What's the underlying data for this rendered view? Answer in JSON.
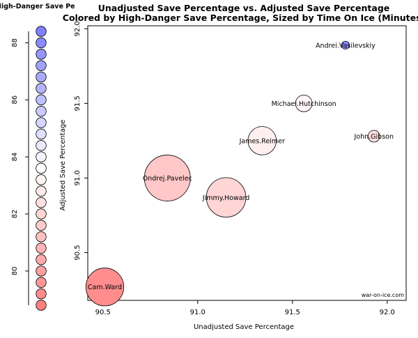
{
  "chart_data": {
    "type": "scatter",
    "title": "Unadjusted Save Percentage vs. Adjusted Save Percentage",
    "subtitle": "Colored by High-Danger Save Percentage, Sized by Time On Ice (Minutes)",
    "xlabel": "Unadjusted Save Percentage",
    "ylabel": "Adjusted Save Percentage",
    "xlim": [
      90.42,
      92.1
    ],
    "ylim": [
      90.18,
      92.02
    ],
    "xticks": [
      "90.5",
      "91.0",
      "91.5",
      "92.0"
    ],
    "yticks": [
      "90.5",
      "91.0",
      "91.5",
      "92.0"
    ],
    "grid": false,
    "points": [
      {
        "name": "Andrei.Vasilevskiy",
        "x": 91.78,
        "y": 91.89,
        "toi": 250,
        "hdsv": 88.0
      },
      {
        "name": "Michael.Hutchinson",
        "x": 91.56,
        "y": 91.5,
        "toi": 1100,
        "hdsv": 83.3
      },
      {
        "name": "John.Gibson",
        "x": 91.93,
        "y": 91.28,
        "toi": 550,
        "hdsv": 82.4
      },
      {
        "name": "James.Reimer",
        "x": 91.34,
        "y": 91.25,
        "toi": 3200,
        "hdsv": 83.0
      },
      {
        "name": "Ondrej.Pavelec",
        "x": 90.84,
        "y": 91.0,
        "toi": 8400,
        "hdsv": 81.5
      },
      {
        "name": "Jimmy.Howard",
        "x": 91.15,
        "y": 90.87,
        "toi": 6200,
        "hdsv": 82.0
      },
      {
        "name": "Cam.Ward",
        "x": 90.51,
        "y": 90.27,
        "toi": 5700,
        "hdsv": 79.3
      }
    ],
    "legend": {
      "title": "High-Danger Save Pe",
      "values": [
        88.4,
        88.0,
        87.6,
        87.2,
        86.8,
        86.4,
        86.0,
        85.6,
        85.2,
        84.8,
        84.4,
        84.0,
        83.6,
        83.2,
        82.8,
        82.4,
        82.0,
        81.6,
        81.2,
        80.8,
        80.4,
        80.0,
        79.6,
        79.2,
        78.8
      ],
      "ticks": [
        "80",
        "82",
        "84",
        "86",
        "88"
      ],
      "high_color": "#8080ff",
      "mid_color": "#ffffff",
      "low_color": "#ff8080",
      "mid_value": 83.6
    },
    "source": "war-on-ice.com"
  }
}
